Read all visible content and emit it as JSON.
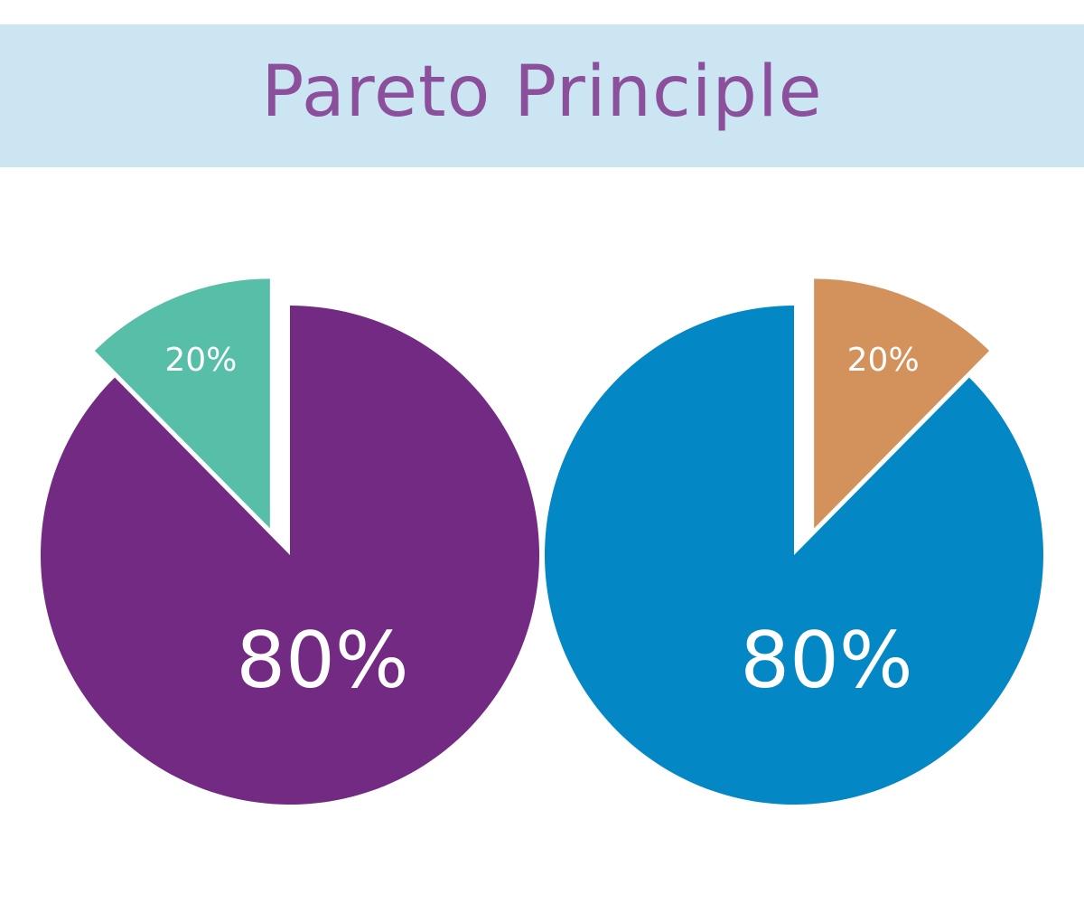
{
  "title": "Pareto Principle",
  "colors": {
    "title_band": "#cbe6f2",
    "title_text": "#8b4f9c",
    "label_text": "#ffffff"
  },
  "chart_data": [
    {
      "type": "pie",
      "slices": [
        {
          "label": "80%",
          "value": 80,
          "color": "#722a83",
          "exploded": false
        },
        {
          "label": "20%",
          "value": 20,
          "color": "#57bfa8",
          "exploded": true
        }
      ]
    },
    {
      "type": "pie",
      "slices": [
        {
          "label": "80%",
          "value": 80,
          "color": "#0387c5",
          "exploded": false
        },
        {
          "label": "20%",
          "value": 20,
          "color": "#d3925c",
          "exploded": true
        }
      ]
    }
  ]
}
